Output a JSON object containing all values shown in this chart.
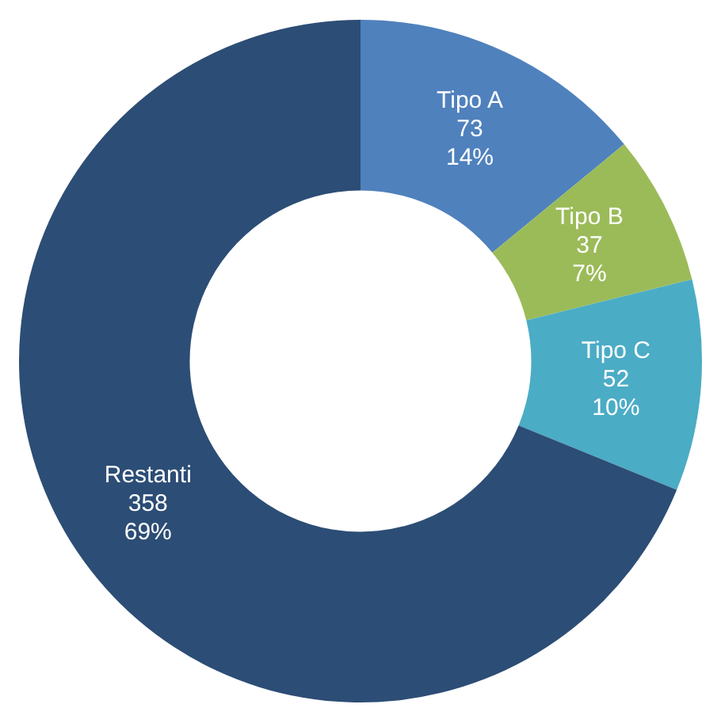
{
  "chart_data": {
    "type": "donut",
    "categories": [
      "Tipo A",
      "Tipo B",
      "Tipo C",
      "Restanti"
    ],
    "values": [
      73,
      37,
      52,
      358
    ],
    "colors": [
      "#4f81bd",
      "#9bbb59",
      "#4bacc6",
      "#2c4d75"
    ],
    "value_labels": [
      "73\n14%",
      "37\n7%",
      "52\n10%",
      "358\n69%"
    ],
    "legend": false
  }
}
